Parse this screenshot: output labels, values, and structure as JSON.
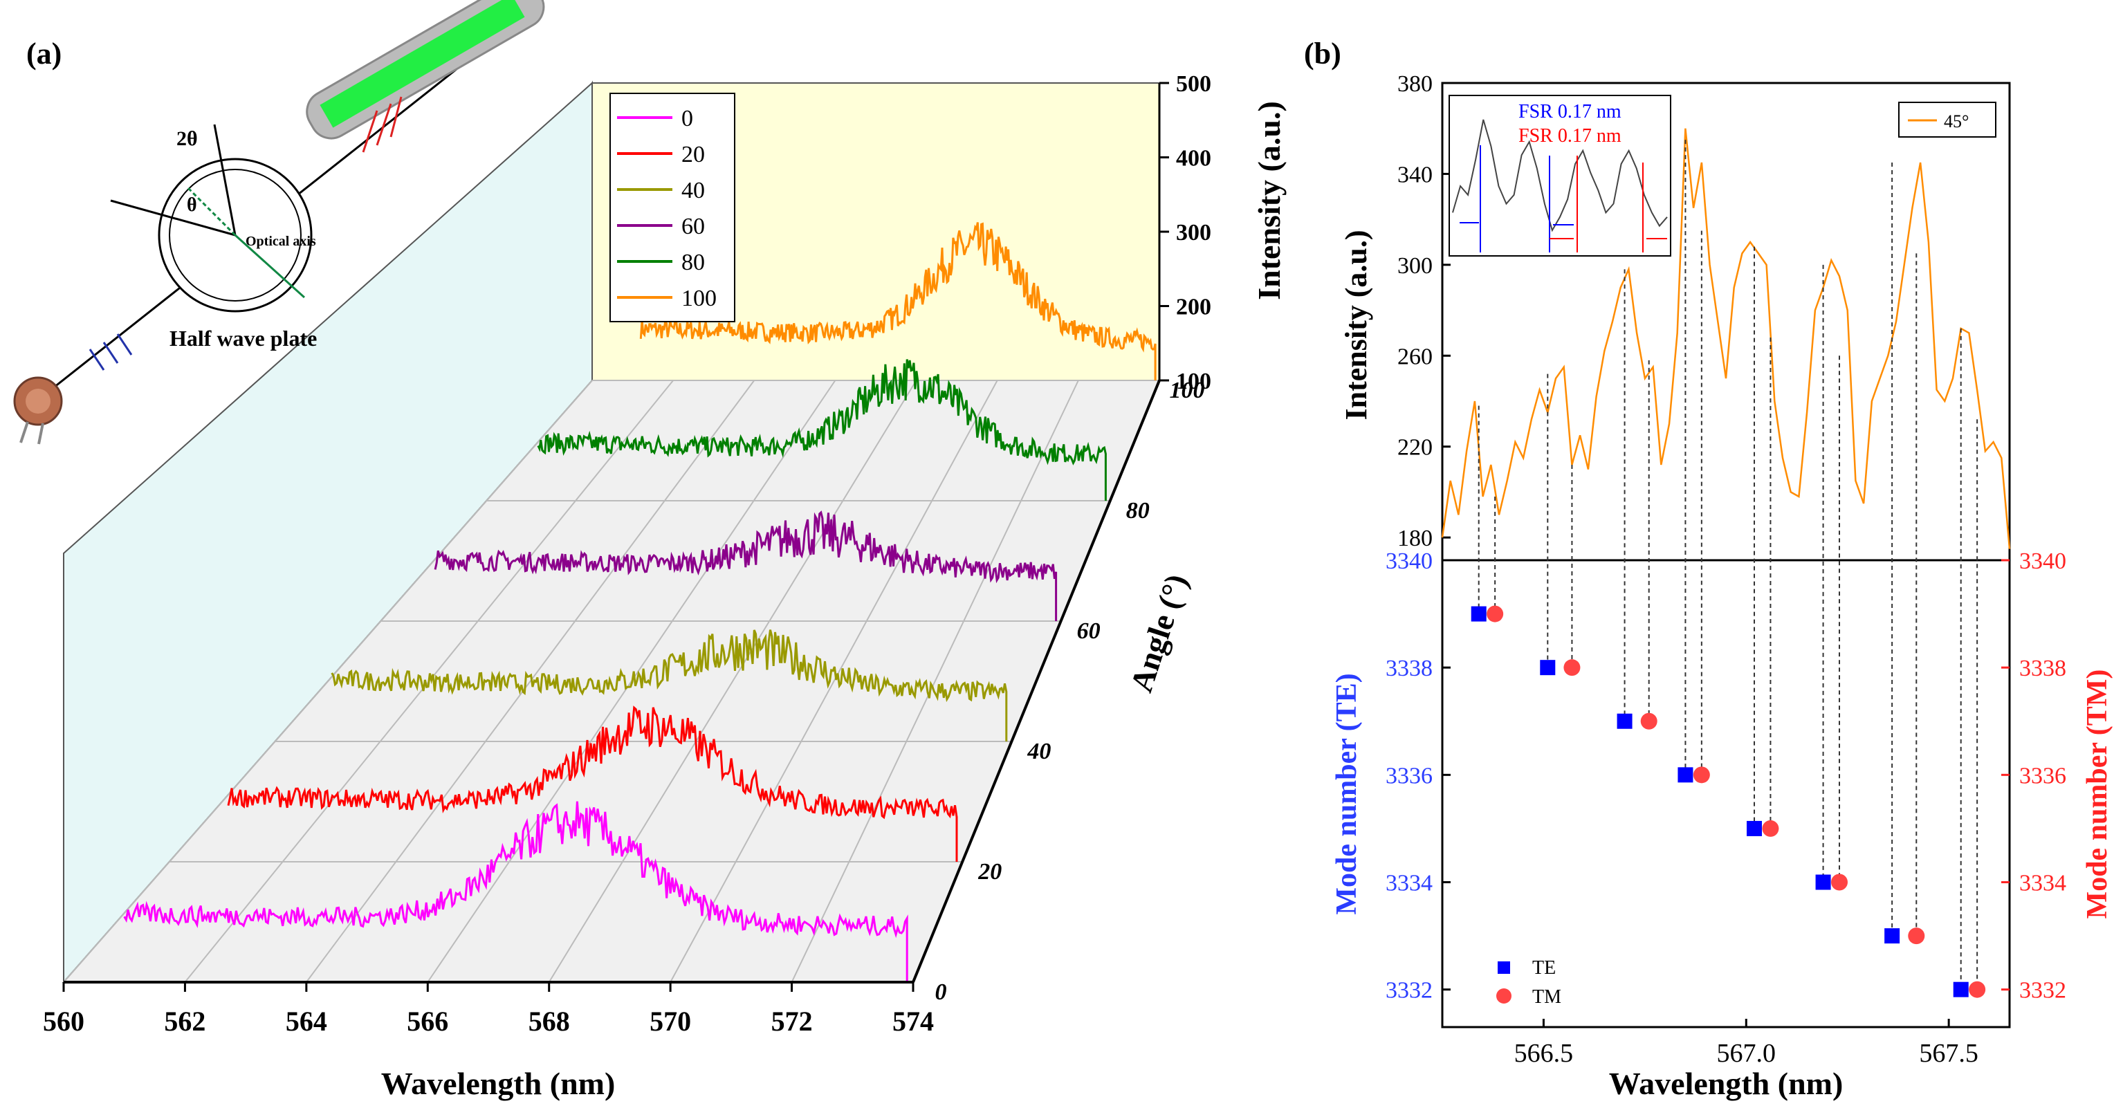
{
  "panel_a": {
    "label": "(a)",
    "diagram": {
      "half_wave_plate": "Half wave plate",
      "optical_axis": "Optical axis",
      "theta": "θ",
      "two_theta": "2θ"
    },
    "legend": [
      "0",
      "20",
      "40",
      "60",
      "80",
      "100"
    ],
    "colors": {
      "0": "#ff00ff",
      "20": "#ff0000",
      "40": "#999900",
      "60": "#8b008b",
      "80": "#008000",
      "100": "#ff8c00"
    }
  },
  "panel_b": {
    "label": "(b)"
  },
  "chart_data": [
    {
      "type": "line",
      "title": "",
      "xlabel": "Wavelength (nm)",
      "ylabel": "Intensity (a.u.)",
      "zlabel": "Angle (°)",
      "x_ticks": [
        "560",
        "562",
        "564",
        "566",
        "568",
        "570",
        "572",
        "574"
      ],
      "xlim": [
        560,
        574
      ],
      "z_ticks": [
        "0",
        "20",
        "40",
        "60",
        "80",
        "100"
      ],
      "zlim": [
        100,
        500
      ],
      "intensity_ticks": [
        "100",
        "200",
        "300",
        "400",
        "500"
      ],
      "series": [
        {
          "name": "0",
          "angle": 0,
          "color": "#ff00ff",
          "peak_center": 568.4,
          "baseline": 195,
          "peak_height": 150
        },
        {
          "name": "20",
          "angle": 20,
          "color": "#ff0000",
          "peak_center": 568.5,
          "baseline": 190,
          "peak_height": 120
        },
        {
          "name": "40",
          "angle": 40,
          "color": "#999900",
          "peak_center": 569.0,
          "baseline": 185,
          "peak_height": 60
        },
        {
          "name": "60",
          "angle": 60,
          "color": "#8b008b",
          "peak_center": 569.0,
          "baseline": 185,
          "peak_height": 50
        },
        {
          "name": "80",
          "angle": 80,
          "color": "#008000",
          "peak_center": 569.5,
          "baseline": 180,
          "peak_height": 110
        },
        {
          "name": "100",
          "angle": 100,
          "color": "#ff8c00",
          "peak_center": 569.5,
          "baseline": 170,
          "peak_height": 140
        }
      ]
    },
    {
      "type": "line",
      "xlabel": "Wavelength (nm)",
      "ylabel": "Intensity (a.u.)",
      "legend": [
        "45°"
      ],
      "y_ticks": [
        "180",
        "220",
        "260",
        "300",
        "340",
        "380"
      ],
      "ylim": [
        170,
        380
      ],
      "xlim": [
        566.25,
        567.65
      ],
      "series": [
        {
          "name": "45°",
          "color": "#ff8c00",
          "x": [
            566.25,
            566.27,
            566.29,
            566.31,
            566.33,
            566.35,
            566.37,
            566.39,
            566.41,
            566.43,
            566.45,
            566.47,
            566.49,
            566.51,
            566.53,
            566.55,
            566.57,
            566.59,
            566.61,
            566.63,
            566.65,
            566.67,
            566.69,
            566.71,
            566.73,
            566.75,
            566.77,
            566.79,
            566.81,
            566.83,
            566.85,
            566.87,
            566.89,
            566.91,
            566.93,
            566.95,
            566.97,
            566.99,
            567.01,
            567.03,
            567.05,
            567.07,
            567.09,
            567.11,
            567.13,
            567.15,
            567.17,
            567.19,
            567.21,
            567.23,
            567.25,
            567.27,
            567.29,
            567.31,
            567.33,
            567.35,
            567.37,
            567.39,
            567.41,
            567.43,
            567.45,
            567.47,
            567.49,
            567.51,
            567.53,
            567.55,
            567.57,
            567.59,
            567.61,
            567.63,
            567.65
          ],
          "y": [
            180,
            205,
            190,
            218,
            240,
            198,
            212,
            190,
            205,
            222,
            215,
            232,
            245,
            235,
            250,
            255,
            212,
            225,
            210,
            242,
            262,
            275,
            290,
            298,
            270,
            250,
            255,
            212,
            230,
            270,
            360,
            325,
            345,
            300,
            275,
            250,
            290,
            305,
            310,
            305,
            300,
            240,
            215,
            200,
            198,
            235,
            280,
            290,
            302,
            295,
            280,
            205,
            195,
            240,
            250,
            260,
            275,
            300,
            325,
            345,
            310,
            245,
            240,
            250,
            272,
            270,
            245,
            218,
            222,
            215,
            175
          ]
        }
      ],
      "inset": {
        "labels": [
          "FSR 0.17 nm",
          "FSR 0.17 nm"
        ],
        "label_colors": [
          "#0000ff",
          "#ff0000"
        ],
        "y": [
          318,
          330,
          326,
          342,
          360,
          348,
          330,
          322,
          326,
          344,
          350,
          338,
          322,
          310,
          316,
          324,
          340,
          346,
          336,
          328,
          318,
          322,
          340,
          346,
          338,
          326,
          318,
          312,
          316
        ]
      }
    },
    {
      "type": "scatter",
      "xlabel": "Wavelength (nm)",
      "ylabel_left": "Mode number (TE)",
      "ylabel_right": "Mode number (TM)",
      "x_ticks": [
        "566.5",
        "567.0",
        "567.5"
      ],
      "xlim": [
        566.25,
        567.65
      ],
      "y_ticks": [
        "3332",
        "3334",
        "3336",
        "3338",
        "3340"
      ],
      "ylim": [
        3331.3,
        3340
      ],
      "legend": [
        "TE",
        "TM"
      ],
      "series": [
        {
          "name": "TE",
          "color": "#0000ff",
          "marker": "square",
          "x": [
            566.34,
            566.51,
            566.7,
            566.85,
            567.02,
            567.19,
            567.36,
            567.53
          ],
          "y": [
            3339,
            3338,
            3337,
            3336,
            3335,
            3334,
            3333,
            3332
          ]
        },
        {
          "name": "TM",
          "color": "#ff4444",
          "marker": "circle",
          "x": [
            566.38,
            566.57,
            566.76,
            566.89,
            567.06,
            567.23,
            567.42,
            567.57
          ],
          "y": [
            3339,
            3338,
            3337,
            3336,
            3335,
            3334,
            3333,
            3332
          ]
        }
      ]
    }
  ]
}
